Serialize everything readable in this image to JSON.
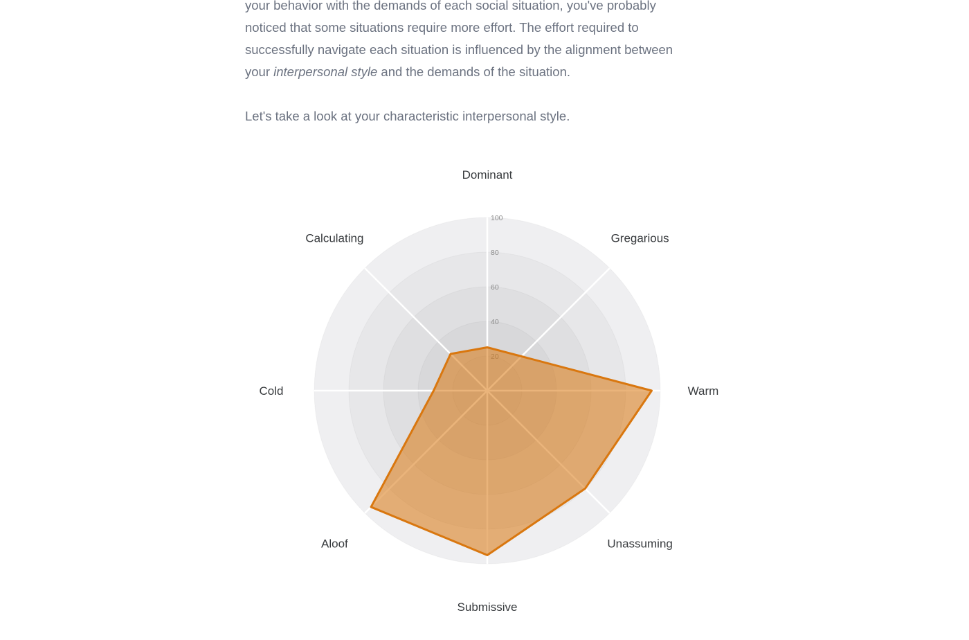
{
  "intro": {
    "lines": [
      "your behavior with the demands of each social situation, you've probably",
      "noticed that some situations require more effort. The effort required to",
      "successfully navigate each situation is influenced by the alignment between"
    ],
    "line4": {
      "before": "your ",
      "italic": "interpersonal style",
      "after": " and the demands of the situation."
    },
    "closing": "Let's take a look at your characteristic interpersonal style."
  },
  "chart_data": {
    "type": "radar",
    "title": "",
    "categories": [
      "Dominant",
      "Gregarious",
      "Warm",
      "Unassuming",
      "Submissive",
      "Aloof",
      "Cold",
      "Calculating"
    ],
    "values": [
      25,
      28,
      95,
      80,
      95,
      95,
      31,
      30
    ],
    "series": [
      {
        "name": "interpersonal-style",
        "values": [
          25,
          28,
          95,
          80,
          95,
          95,
          31,
          30
        ]
      }
    ],
    "radial_ticks": [
      20,
      40,
      60,
      80,
      100
    ],
    "radial_range": [
      0,
      100
    ],
    "start_angle_deg": -90,
    "direction": "clockwise",
    "grid": "concentric-bands",
    "legend": "none",
    "colors": {
      "line": "#d9770f",
      "fill": "rgba(217, 119, 15, 0.55)",
      "bands_outer_to_inner": [
        "#efeff1",
        "#e7e7e9",
        "#dfdfe1",
        "#d8d8da",
        "#d2d2d4"
      ],
      "spoke": "#ffffff",
      "tick_label": "#8a8a8a",
      "axis_label": "#383b3e"
    }
  }
}
